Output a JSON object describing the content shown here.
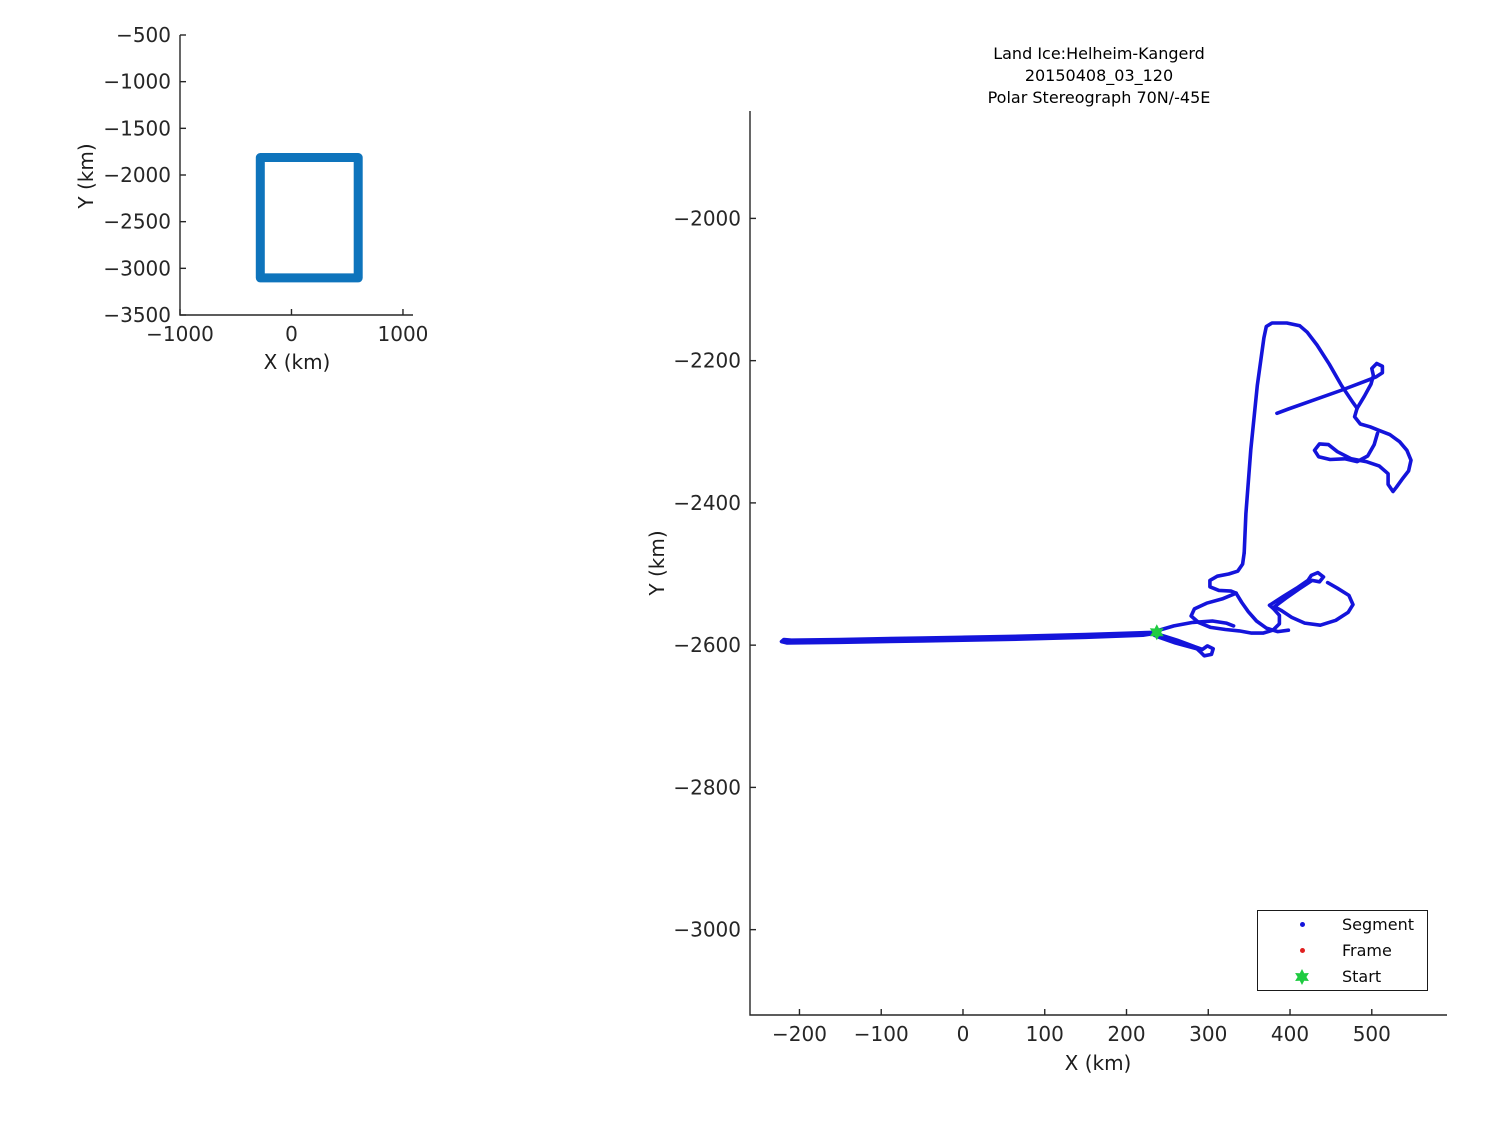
{
  "figure": {
    "background": "#ffffff"
  },
  "colors": {
    "axis": "#262626",
    "tick_text": "#262626",
    "track_blue": "#1414DB",
    "overview_blue": "#0E74BC",
    "frame_red": "#E02020",
    "start_green": "#1FCB41"
  },
  "chart_data": [
    {
      "id": "overview-inset",
      "type": "line",
      "xlabel": "X (km)",
      "ylabel": "Y (km)",
      "xlim": [
        -1000,
        1090
      ],
      "ylim": [
        -3500,
        -500
      ],
      "xticks": [
        -1000,
        0,
        1000
      ],
      "yticks": [
        -500,
        -1000,
        -1500,
        -2000,
        -2500,
        -3000,
        -3500
      ],
      "grid": false,
      "axis_color": "#262626",
      "series": [
        {
          "name": "coverage-extent-box",
          "color": "#0E74BC",
          "width": 9,
          "points": [
            [
              -280,
              -1812
            ],
            [
              598,
              -1812
            ],
            [
              598,
              -3103
            ],
            [
              -280,
              -3103
            ],
            [
              -280,
              -1812
            ],
            [
              -250,
              -1812
            ]
          ]
        }
      ]
    },
    {
      "id": "flight-track",
      "type": "line",
      "title": [
        "Land Ice:Helheim-Kangerd",
        "20150408_03_120",
        "Polar Stereograph 70N/-45E"
      ],
      "xlabel": "X (km)",
      "ylabel": "Y (km)",
      "xlim": [
        -260.5,
        592
      ],
      "ylim": [
        -3120,
        -1849
      ],
      "xticks": [
        -200,
        -100,
        0,
        100,
        200,
        300,
        400,
        500
      ],
      "yticks": [
        -2000,
        -2200,
        -2400,
        -2600,
        -2800,
        -3000
      ],
      "grid": false,
      "axis_color": "#262626",
      "series": [
        {
          "name": "transit-line-west",
          "color": "#1414DB",
          "width": 3.6,
          "points": [
            [
              237,
              -2582
            ],
            [
              150,
              -2585
            ],
            [
              50,
              -2588
            ],
            [
              -50,
              -2590
            ],
            [
              -150,
              -2592
            ],
            [
              -210,
              -2593
            ],
            [
              -219,
              -2592
            ],
            [
              -222,
              -2595
            ],
            [
              -215,
              -2597
            ],
            [
              -150,
              -2596
            ],
            [
              -50,
              -2594
            ],
            [
              50,
              -2592
            ],
            [
              150,
              -2589
            ],
            [
              220,
              -2586
            ],
            [
              237,
              -2583
            ]
          ]
        },
        {
          "name": "start-spur-loop",
          "color": "#1414DB",
          "width": 3.6,
          "points": [
            [
              237,
              -2584
            ],
            [
              262,
              -2593
            ],
            [
              283,
              -2602
            ],
            [
              293,
              -2606
            ],
            [
              299,
              -2601
            ],
            [
              306,
              -2605
            ],
            [
              304,
              -2613
            ],
            [
              295,
              -2615
            ],
            [
              290,
              -2609
            ],
            [
              286,
              -2605
            ],
            [
              260,
              -2597
            ],
            [
              240,
              -2589
            ],
            [
              234,
              -2586
            ]
          ]
        },
        {
          "name": "approach-segment",
          "color": "#1414DB",
          "width": 3.6,
          "points": [
            [
              237,
              -2580
            ],
            [
              258,
              -2573
            ],
            [
              281,
              -2568
            ],
            [
              305,
              -2566
            ],
            [
              322,
              -2569
            ],
            [
              331,
              -2573
            ]
          ]
        },
        {
          "name": "cluster-north-lobe",
          "color": "#1414DB",
          "width": 3.6,
          "points": [
            [
              344,
              -2470
            ],
            [
              342,
              -2486
            ],
            [
              336,
              -2496
            ],
            [
              325,
              -2500
            ],
            [
              311,
              -2503
            ],
            [
              302,
              -2509
            ],
            [
              302,
              -2518
            ],
            [
              313,
              -2523
            ],
            [
              328,
              -2524
            ],
            [
              334,
              -2527
            ]
          ]
        },
        {
          "name": "cluster-west-loop",
          "color": "#1414DB",
          "width": 3.6,
          "points": [
            [
              334,
              -2527
            ],
            [
              317,
              -2535
            ],
            [
              298,
              -2541
            ],
            [
              283,
              -2549
            ],
            [
              279,
              -2559
            ],
            [
              288,
              -2568
            ],
            [
              303,
              -2575
            ],
            [
              321,
              -2578
            ],
            [
              338,
              -2580
            ],
            [
              353,
              -2583
            ],
            [
              367,
              -2583
            ],
            [
              379,
              -2579
            ],
            [
              387,
              -2570
            ],
            [
              387,
              -2558
            ],
            [
              380,
              -2549
            ],
            [
              375,
              -2544
            ]
          ]
        },
        {
          "name": "cluster-center-strand",
          "color": "#1414DB",
          "width": 3.6,
          "points": [
            [
              334,
              -2527
            ],
            [
              341,
              -2540
            ],
            [
              349,
              -2553
            ],
            [
              359,
              -2566
            ],
            [
              371,
              -2576
            ],
            [
              385,
              -2581
            ],
            [
              398,
              -2579
            ]
          ]
        },
        {
          "name": "cluster-east-pretzel",
          "color": "#1414DB",
          "width": 3.6,
          "points": [
            [
              375,
              -2544
            ],
            [
              391,
              -2532
            ],
            [
              408,
              -2520
            ],
            [
              422,
              -2509
            ],
            [
              426,
              -2502
            ],
            [
              434,
              -2498
            ],
            [
              441,
              -2504
            ],
            [
              436,
              -2511
            ],
            [
              427,
              -2509
            ],
            [
              411,
              -2521
            ],
            [
              395,
              -2534
            ],
            [
              381,
              -2546
            ],
            [
              389,
              -2551
            ],
            [
              402,
              -2561
            ],
            [
              418,
              -2569
            ],
            [
              437,
              -2572
            ],
            [
              456,
              -2565
            ],
            [
              471,
              -2554
            ],
            [
              477,
              -2543
            ],
            [
              472,
              -2530
            ],
            [
              458,
              -2520
            ],
            [
              446,
              -2512
            ]
          ]
        },
        {
          "name": "northbound-leg",
          "color": "#1414DB",
          "width": 3.6,
          "points": [
            [
              344,
              -2470
            ],
            [
              346,
              -2415
            ],
            [
              352,
              -2325
            ],
            [
              360,
              -2235
            ],
            [
              368,
              -2168
            ],
            [
              371,
              -2152
            ],
            [
              378,
              -2147
            ],
            [
              396,
              -2147
            ],
            [
              412,
              -2151
            ],
            [
              421,
              -2160
            ],
            [
              433,
              -2178
            ],
            [
              448,
              -2205
            ],
            [
              463,
              -2235
            ],
            [
              477,
              -2259
            ],
            [
              482,
              -2267
            ]
          ]
        },
        {
          "name": "summit-loop-leg",
          "color": "#1414DB",
          "width": 3.6,
          "points": [
            [
              482,
              -2267
            ],
            [
              491,
              -2250
            ],
            [
              499,
              -2233
            ],
            [
              502,
              -2221
            ],
            [
              500,
              -2211
            ],
            [
              506,
              -2204
            ],
            [
              513,
              -2208
            ],
            [
              513,
              -2217
            ],
            [
              505,
              -2223
            ],
            [
              494,
              -2228
            ],
            [
              462,
              -2242
            ],
            [
              425,
              -2257
            ],
            [
              398,
              -2268
            ],
            [
              384,
              -2274
            ]
          ]
        },
        {
          "name": "east-survey-loop",
          "color": "#1414DB",
          "width": 3.6,
          "points": [
            [
              482,
              -2267
            ],
            [
              479,
              -2279
            ],
            [
              486,
              -2289
            ],
            [
              498,
              -2293
            ],
            [
              509,
              -2298
            ],
            [
              522,
              -2304
            ],
            [
              534,
              -2314
            ],
            [
              543,
              -2326
            ],
            [
              548,
              -2340
            ],
            [
              545,
              -2355
            ],
            [
              537,
              -2367
            ],
            [
              530,
              -2378
            ],
            [
              526,
              -2384
            ],
            [
              520,
              -2374
            ],
            [
              520,
              -2359
            ],
            [
              509,
              -2348
            ],
            [
              493,
              -2342
            ],
            [
              475,
              -2338
            ],
            [
              458,
              -2328
            ],
            [
              447,
              -2318
            ],
            [
              436,
              -2317
            ],
            [
              430,
              -2326
            ],
            [
              435,
              -2335
            ],
            [
              449,
              -2339
            ],
            [
              467,
              -2338
            ],
            [
              482,
              -2342
            ],
            [
              495,
              -2334
            ],
            [
              503,
              -2318
            ],
            [
              507,
              -2302
            ]
          ]
        }
      ],
      "markers": [
        {
          "name": "start-marker",
          "shape": "hexagram",
          "x": 237,
          "y": -2582,
          "size": 8,
          "color": "#1FCB41"
        }
      ],
      "legend": {
        "items": [
          {
            "label": "Segment",
            "marker": "dot",
            "color": "#1414DB"
          },
          {
            "label": "Frame",
            "marker": "dot",
            "color": "#E02020"
          },
          {
            "label": "Start",
            "marker": "hexagram",
            "color": "#1FCB41"
          }
        ]
      }
    }
  ]
}
